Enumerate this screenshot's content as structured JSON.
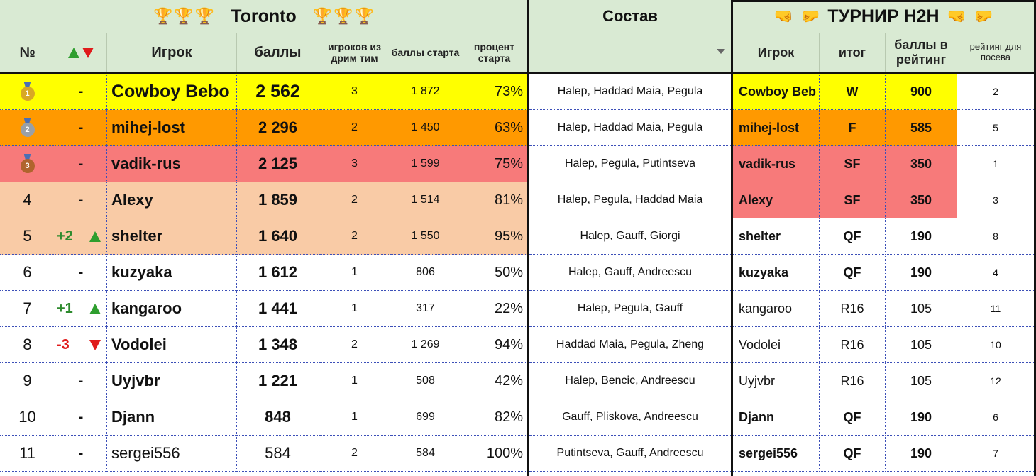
{
  "header": {
    "toronto_title": "Toronto",
    "sostav_title": "Состав",
    "h2h_title": "ТУРНИР H2H",
    "columns": {
      "num": "№",
      "player": "Игрок",
      "points": "баллы",
      "dream_team_players": "игроков из дрим тим",
      "start_points": "баллы старта",
      "start_percent": "процент старта",
      "h2h_player": "Игрок",
      "h2h_result": "итог",
      "rating_points": "баллы в рейтинг",
      "seeding_rating": "рейтинг для посева"
    }
  },
  "colors": {
    "gold": "#ffff00",
    "silver": "#ff9900",
    "bronze": "#f77a7a",
    "peach": "#f9cba6",
    "header_green": "#d9ead3"
  },
  "rows": [
    {
      "num": "1",
      "change": "-",
      "name": "Cowboy Bebo",
      "points": "2 562",
      "dream": "3",
      "start_points": "1 872",
      "percent": "73%",
      "lineup": "Halep, Haddad Maia, Pegula",
      "h2h_name": "Cowboy Beb",
      "result": "W",
      "rating_points": "900",
      "seed": "2"
    },
    {
      "num": "2",
      "change": "-",
      "name": "mihej-lost",
      "points": "2 296",
      "dream": "2",
      "start_points": "1 450",
      "percent": "63%",
      "lineup": "Halep, Haddad Maia, Pegula",
      "h2h_name": "mihej-lost",
      "result": "F",
      "rating_points": "585",
      "seed": "5"
    },
    {
      "num": "3",
      "change": "-",
      "name": "vadik-rus",
      "points": "2 125",
      "dream": "3",
      "start_points": "1 599",
      "percent": "75%",
      "lineup": "Halep, Pegula, Putintseva",
      "h2h_name": "vadik-rus",
      "result": "SF",
      "rating_points": "350",
      "seed": "1"
    },
    {
      "num": "4",
      "change": "-",
      "name": "Alexy",
      "points": "1 859",
      "dream": "2",
      "start_points": "1 514",
      "percent": "81%",
      "lineup": "Halep, Pegula, Haddad Maia",
      "h2h_name": "Alexy",
      "result": "SF",
      "rating_points": "350",
      "seed": "3"
    },
    {
      "num": "5",
      "change": "+2",
      "name": "shelter",
      "points": "1 640",
      "dream": "2",
      "start_points": "1 550",
      "percent": "95%",
      "lineup": "Halep, Gauff, Giorgi",
      "h2h_name": "shelter",
      "result": "QF",
      "rating_points": "190",
      "seed": "8"
    },
    {
      "num": "6",
      "change": "-",
      "name": "kuzyaka",
      "points": "1 612",
      "dream": "1",
      "start_points": "806",
      "percent": "50%",
      "lineup": "Halep, Gauff, Andreescu",
      "h2h_name": "kuzyaka",
      "result": "QF",
      "rating_points": "190",
      "seed": "4"
    },
    {
      "num": "7",
      "change": "+1",
      "name": "kangaroo",
      "points": "1 441",
      "dream": "1",
      "start_points": "317",
      "percent": "22%",
      "lineup": "Halep, Pegula, Gauff",
      "h2h_name": "kangaroo",
      "result": "R16",
      "rating_points": "105",
      "seed": "11"
    },
    {
      "num": "8",
      "change": "-3",
      "name": "Vodolei",
      "points": "1 348",
      "dream": "2",
      "start_points": "1 269",
      "percent": "94%",
      "lineup": "Haddad Maia, Pegula, Zheng",
      "h2h_name": "Vodolei",
      "result": "R16",
      "rating_points": "105",
      "seed": "10"
    },
    {
      "num": "9",
      "change": "-",
      "name": "Uyjvbr",
      "points": "1 221",
      "dream": "1",
      "start_points": "508",
      "percent": "42%",
      "lineup": "Halep, Bencic, Andreescu",
      "h2h_name": "Uyjvbr",
      "result": "R16",
      "rating_points": "105",
      "seed": "12"
    },
    {
      "num": "10",
      "change": "-",
      "name": "Djann",
      "points": "848",
      "dream": "1",
      "start_points": "699",
      "percent": "82%",
      "lineup": "Gauff, Pliskova, Andreescu",
      "h2h_name": "Djann",
      "result": "QF",
      "rating_points": "190",
      "seed": "6"
    },
    {
      "num": "11",
      "change": "-",
      "name": "sergei556",
      "points": "584",
      "dream": "2",
      "start_points": "584",
      "percent": "100%",
      "lineup": "Putintseva, Gauff, Andreescu",
      "h2h_name": "sergei556",
      "result": "QF",
      "rating_points": "190",
      "seed": "7"
    }
  ]
}
